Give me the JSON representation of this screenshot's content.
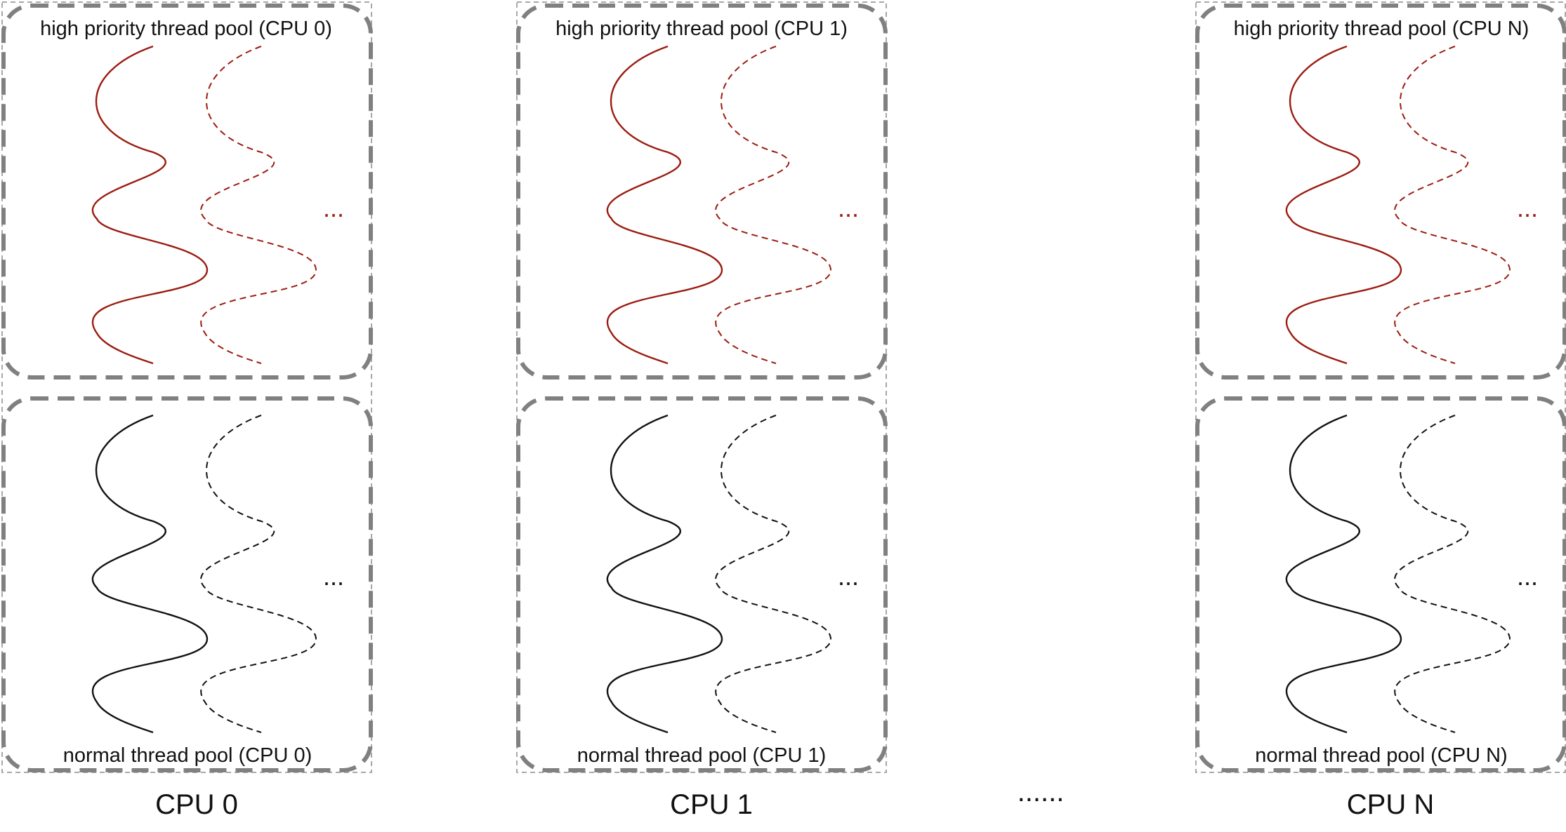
{
  "colors": {
    "high_priority": "#9b1c10",
    "normal": "#111111",
    "border": "#808080",
    "outer_border": "#a8a8a8"
  },
  "cpus": [
    {
      "id": "cpu-0",
      "label": "CPU 0",
      "high_pool_label": "high priority thread pool (CPU 0)",
      "normal_pool_label": "normal thread pool (CPU 0)",
      "high_ellipsis": "...",
      "normal_ellipsis": "..."
    },
    {
      "id": "cpu-1",
      "label": "CPU 1",
      "high_pool_label": "high priority thread pool (CPU 1)",
      "normal_pool_label": "normal thread pool (CPU 1)",
      "high_ellipsis": "...",
      "normal_ellipsis": "..."
    },
    {
      "id": "cpu-n",
      "label": "CPU N",
      "high_pool_label": "high priority thread pool (CPU N)",
      "normal_pool_label": "normal thread pool (CPU N)",
      "high_ellipsis": "...",
      "normal_ellipsis": "..."
    }
  ],
  "between_ellipsis": "......"
}
